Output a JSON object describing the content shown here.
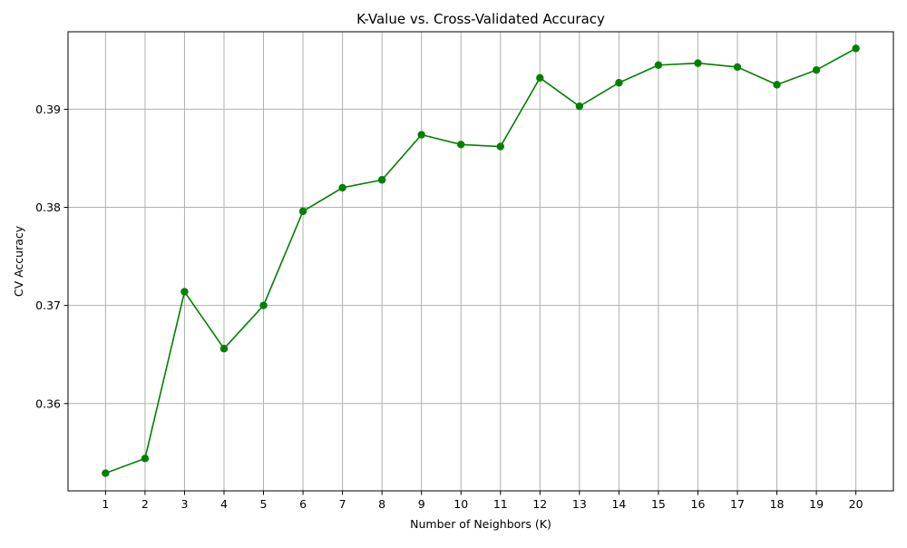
{
  "chart_data": {
    "type": "line",
    "title": "K-Value vs. Cross-Validated Accuracy",
    "xlabel": "Number of Neighbors (K)",
    "ylabel": "CV Accuracy",
    "x": [
      1,
      2,
      3,
      4,
      5,
      6,
      7,
      8,
      9,
      10,
      11,
      12,
      13,
      14,
      15,
      16,
      17,
      18,
      19,
      20
    ],
    "x_tick_labels": [
      "1",
      "2",
      "3",
      "4",
      "5",
      "6",
      "7",
      "8",
      "9",
      "10",
      "11",
      "12",
      "13",
      "14",
      "15",
      "16",
      "17",
      "18",
      "19",
      "20"
    ],
    "y_ticks": [
      0.36,
      0.37,
      0.38,
      0.39
    ],
    "y_tick_labels": [
      "0.36",
      "0.37",
      "0.38",
      "0.39"
    ],
    "xlim": [
      0.05,
      20.95
    ],
    "ylim": [
      0.3511,
      0.3979
    ],
    "grid": true,
    "series": [
      {
        "color": "#008000",
        "marker": "circle",
        "values": [
          0.3529,
          0.3544,
          0.3714,
          0.3656,
          0.37,
          0.3796,
          0.382,
          0.3828,
          0.3874,
          0.3864,
          0.3862,
          0.3932,
          0.3903,
          0.3927,
          0.3945,
          0.3947,
          0.3943,
          0.3925,
          0.394,
          0.3962
        ]
      }
    ]
  }
}
